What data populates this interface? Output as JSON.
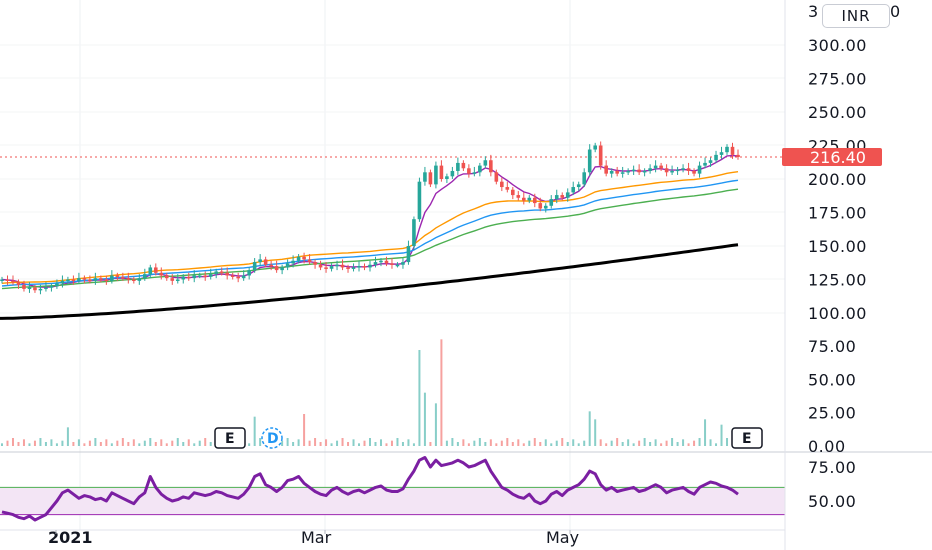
{
  "currency": "INR",
  "top_label_partial": "3",
  "top_label_partial_end": "0",
  "last_price_label": "216.40",
  "colors": {
    "up": "#26a69a",
    "down": "#ef5350",
    "ema_fast": "#9c27b0",
    "ema_orange": "#ff9800",
    "ema_blue": "#2196f3",
    "ema_green": "#4caf50",
    "ema_long": "#000000",
    "rsi": "#7b1fa2",
    "rsi_band": "#f3e5f5",
    "price_tag": "#ef5350"
  },
  "event_badges": [
    {
      "letter": "E",
      "color": "#131722"
    },
    {
      "letter": "D",
      "color": "#2196f3"
    },
    {
      "letter": "E",
      "color": "#131722"
    }
  ],
  "chart_data": [
    {
      "type": "candlestick",
      "title": "",
      "y_axis_ticks": [
        "300.00",
        "275.00",
        "250.00",
        "225.00",
        "200.00",
        "175.00",
        "150.00",
        "125.00",
        "100.00"
      ],
      "ylim": [
        90,
        320
      ],
      "last_price": 216.4,
      "x_ticks": [
        {
          "label": "2021",
          "bold": true
        },
        {
          "label": "Mar",
          "bold": false
        },
        {
          "label": "May",
          "bold": false
        }
      ],
      "closes": [
        125,
        124,
        123,
        121,
        118,
        119,
        117,
        118,
        119,
        120,
        122,
        124,
        125,
        124,
        126,
        125,
        124,
        126,
        125,
        124,
        128,
        127,
        126,
        125,
        124,
        126,
        129,
        134,
        130,
        128,
        126,
        124,
        125,
        127,
        126,
        128,
        128,
        127,
        129,
        131,
        130,
        128,
        127,
        126,
        128,
        132,
        138,
        140,
        136,
        135,
        132,
        134,
        137,
        139,
        142,
        140,
        138,
        136,
        134,
        133,
        135,
        136,
        134,
        133,
        134,
        135,
        134,
        136,
        138,
        139,
        137,
        136,
        136,
        138,
        150,
        170,
        198,
        205,
        196,
        210,
        200,
        202,
        206,
        212,
        208,
        204,
        205,
        210,
        214,
        205,
        198,
        194,
        192,
        188,
        186,
        184,
        186,
        182,
        178,
        180,
        185,
        188,
        186,
        190,
        194,
        196,
        205,
        222,
        225,
        210,
        204,
        206,
        204,
        205,
        206,
        207,
        205,
        206,
        208,
        210,
        208,
        205,
        206,
        207,
        208,
        206,
        204,
        210,
        212,
        214,
        218,
        220,
        224,
        218,
        216.4
      ],
      "ema_series": [
        {
          "key": "ema_fast",
          "start": 125,
          "end": 210
        },
        {
          "key": "ema_orange",
          "start": 122,
          "end": 198
        },
        {
          "key": "ema_blue",
          "start": 120,
          "end": 188
        },
        {
          "key": "ema_green",
          "start": 118,
          "end": 178
        },
        {
          "key": "ema_long",
          "start": 96,
          "end": 151
        }
      ]
    },
    {
      "type": "bar",
      "title": "",
      "y_axis_ticks": [
        "75.00",
        "50.00",
        "25.00",
        "0.00"
      ],
      "ylim": [
        0,
        85
      ],
      "spikes": [
        {
          "i": 12,
          "v": 14
        },
        {
          "i": 46,
          "v": 22
        },
        {
          "i": 55,
          "v": 24
        },
        {
          "i": 76,
          "v": 72
        },
        {
          "i": 77,
          "v": 40
        },
        {
          "i": 80,
          "v": 80
        },
        {
          "i": 79,
          "v": 32
        },
        {
          "i": 107,
          "v": 26
        },
        {
          "i": 108,
          "v": 20
        },
        {
          "i": 128,
          "v": 20
        },
        {
          "i": 131,
          "v": 16
        }
      ]
    },
    {
      "type": "line",
      "title": "",
      "y_axis_ticks": [
        "75.00",
        "50.00"
      ],
      "ylim": [
        30,
        85
      ],
      "upper_band": 60,
      "lower_band": 40,
      "values": [
        42,
        41,
        40,
        38,
        37,
        39,
        36,
        38,
        40,
        45,
        50,
        56,
        58,
        55,
        52,
        54,
        53,
        51,
        52,
        50,
        56,
        54,
        52,
        50,
        48,
        53,
        56,
        68,
        60,
        55,
        52,
        50,
        51,
        53,
        52,
        56,
        55,
        54,
        55,
        57,
        56,
        54,
        53,
        52,
        55,
        60,
        68,
        70,
        62,
        60,
        57,
        60,
        65,
        66,
        68,
        63,
        60,
        57,
        55,
        54,
        58,
        60,
        57,
        55,
        57,
        58,
        56,
        58,
        60,
        61,
        58,
        57,
        57,
        59,
        66,
        72,
        80,
        82,
        75,
        80,
        76,
        77,
        78,
        80,
        78,
        75,
        76,
        78,
        80,
        72,
        66,
        60,
        58,
        55,
        53,
        52,
        55,
        50,
        48,
        50,
        55,
        57,
        54,
        58,
        60,
        62,
        66,
        72,
        70,
        62,
        58,
        60,
        57,
        58,
        59,
        60,
        57,
        58,
        60,
        62,
        60,
        56,
        58,
        59,
        60,
        57,
        55,
        60,
        62,
        64,
        63,
        61,
        60,
        58,
        55
      ]
    }
  ]
}
